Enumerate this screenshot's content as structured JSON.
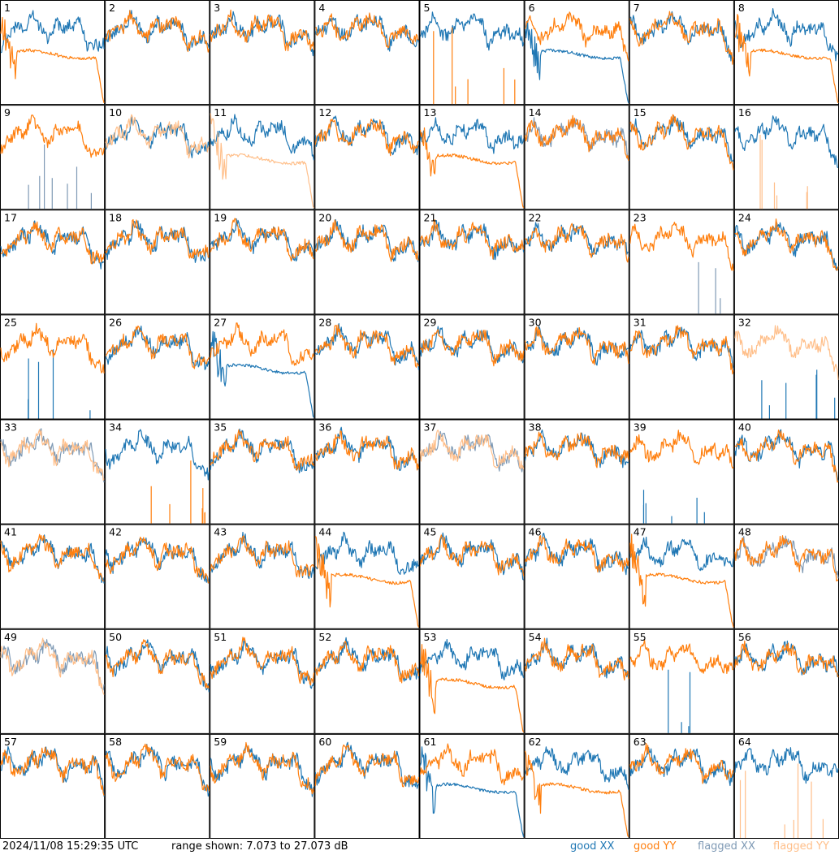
{
  "timestamp": "2024/11/08 15:29:35 UTC",
  "range_text": "range shown: 7.073 to 27.073 dB",
  "legend": [
    {
      "label": "good XX",
      "color": "#1f77b4"
    },
    {
      "label": "good YY",
      "color": "#ff7f0e"
    },
    {
      "label": "flagged XX",
      "color": "#7f9ab5"
    },
    {
      "label": "flagged YY",
      "color": "#ffbf8a"
    }
  ],
  "chart_data": {
    "type": "line",
    "grid": "8x8",
    "ylim": [
      7.073,
      27.073
    ],
    "yunit": "dB",
    "panels": [
      {
        "id": "1",
        "xx": "good",
        "yy": "good",
        "xx_shape": "normal",
        "yy_shape": "rolloff"
      },
      {
        "id": "2",
        "xx": "good",
        "yy": "good",
        "xx_shape": "normal",
        "yy_shape": "normal"
      },
      {
        "id": "3",
        "xx": "good",
        "yy": "good",
        "xx_shape": "normal",
        "yy_shape": "normal"
      },
      {
        "id": "4",
        "xx": "good",
        "yy": "good",
        "xx_shape": "normal",
        "yy_shape": "normal"
      },
      {
        "id": "5",
        "xx": "good",
        "yy": "good",
        "xx_shape": "normal",
        "yy_shape": "spikes"
      },
      {
        "id": "6",
        "xx": "good",
        "yy": "good",
        "xx_shape": "rolloff",
        "yy_shape": "normal"
      },
      {
        "id": "7",
        "xx": "good",
        "yy": "good",
        "xx_shape": "normal",
        "yy_shape": "normal"
      },
      {
        "id": "8",
        "xx": "good",
        "yy": "good",
        "xx_shape": "normal",
        "yy_shape": "rolloff"
      },
      {
        "id": "9",
        "xx": "flagged",
        "yy": "good",
        "xx_shape": "spikes",
        "yy_shape": "normal"
      },
      {
        "id": "10",
        "xx": "good",
        "yy": "flagged",
        "xx_shape": "normal",
        "yy_shape": "normal"
      },
      {
        "id": "11",
        "xx": "good",
        "yy": "flagged",
        "xx_shape": "normal",
        "yy_shape": "rolloff"
      },
      {
        "id": "12",
        "xx": "good",
        "yy": "good",
        "xx_shape": "normal",
        "yy_shape": "normal"
      },
      {
        "id": "13",
        "xx": "good",
        "yy": "good",
        "xx_shape": "normal",
        "yy_shape": "rolloff"
      },
      {
        "id": "14",
        "xx": "flagged",
        "yy": "good",
        "xx_shape": "normal",
        "yy_shape": "normal"
      },
      {
        "id": "15",
        "xx": "good",
        "yy": "good",
        "xx_shape": "normal",
        "yy_shape": "normal"
      },
      {
        "id": "16",
        "xx": "good",
        "yy": "flagged",
        "xx_shape": "normal",
        "yy_shape": "spikes"
      },
      {
        "id": "17",
        "xx": "good",
        "yy": "good",
        "xx_shape": "normal",
        "yy_shape": "normal"
      },
      {
        "id": "18",
        "xx": "good",
        "yy": "good",
        "xx_shape": "normal",
        "yy_shape": "normal"
      },
      {
        "id": "19",
        "xx": "good",
        "yy": "good",
        "xx_shape": "normal",
        "yy_shape": "normal"
      },
      {
        "id": "20",
        "xx": "good",
        "yy": "good",
        "xx_shape": "normal",
        "yy_shape": "normal"
      },
      {
        "id": "21",
        "xx": "good",
        "yy": "good",
        "xx_shape": "normal",
        "yy_shape": "normal"
      },
      {
        "id": "22",
        "xx": "good",
        "yy": "good",
        "xx_shape": "normal",
        "yy_shape": "normal"
      },
      {
        "id": "23",
        "xx": "flagged",
        "yy": "good",
        "xx_shape": "spikes",
        "yy_shape": "normal"
      },
      {
        "id": "24",
        "xx": "good",
        "yy": "good",
        "xx_shape": "normal",
        "yy_shape": "normal"
      },
      {
        "id": "25",
        "xx": "good",
        "yy": "good",
        "xx_shape": "spikes",
        "yy_shape": "normal"
      },
      {
        "id": "26",
        "xx": "good",
        "yy": "good",
        "xx_shape": "normal",
        "yy_shape": "normal"
      },
      {
        "id": "27",
        "xx": "good",
        "yy": "good",
        "xx_shape": "rolloff",
        "yy_shape": "normal"
      },
      {
        "id": "28",
        "xx": "good",
        "yy": "good",
        "xx_shape": "normal",
        "yy_shape": "normal"
      },
      {
        "id": "29",
        "xx": "good",
        "yy": "good",
        "xx_shape": "normal",
        "yy_shape": "normal"
      },
      {
        "id": "30",
        "xx": "good",
        "yy": "good",
        "xx_shape": "normal",
        "yy_shape": "normal"
      },
      {
        "id": "31",
        "xx": "good",
        "yy": "good",
        "xx_shape": "normal",
        "yy_shape": "normal"
      },
      {
        "id": "32",
        "xx": "good",
        "yy": "flagged",
        "xx_shape": "spikes",
        "yy_shape": "normal"
      },
      {
        "id": "33",
        "xx": "flagged",
        "yy": "flagged",
        "xx_shape": "normal",
        "yy_shape": "normal"
      },
      {
        "id": "34",
        "xx": "good",
        "yy": "good",
        "xx_shape": "normal",
        "yy_shape": "spikes"
      },
      {
        "id": "35",
        "xx": "good",
        "yy": "good",
        "xx_shape": "normal",
        "yy_shape": "normal"
      },
      {
        "id": "36",
        "xx": "good",
        "yy": "good",
        "xx_shape": "normal",
        "yy_shape": "normal"
      },
      {
        "id": "37",
        "xx": "flagged",
        "yy": "flagged",
        "xx_shape": "normal",
        "yy_shape": "normal"
      },
      {
        "id": "38",
        "xx": "good",
        "yy": "good",
        "xx_shape": "normal",
        "yy_shape": "normal"
      },
      {
        "id": "39",
        "xx": "good",
        "yy": "good",
        "xx_shape": "spikes",
        "yy_shape": "normal"
      },
      {
        "id": "40",
        "xx": "good",
        "yy": "good",
        "xx_shape": "normal",
        "yy_shape": "normal"
      },
      {
        "id": "41",
        "xx": "good",
        "yy": "good",
        "xx_shape": "normal",
        "yy_shape": "normal"
      },
      {
        "id": "42",
        "xx": "good",
        "yy": "good",
        "xx_shape": "normal",
        "yy_shape": "normal"
      },
      {
        "id": "43",
        "xx": "good",
        "yy": "good",
        "xx_shape": "normal",
        "yy_shape": "normal"
      },
      {
        "id": "44",
        "xx": "good",
        "yy": "good",
        "xx_shape": "normal",
        "yy_shape": "rolloff"
      },
      {
        "id": "45",
        "xx": "good",
        "yy": "good",
        "xx_shape": "normal",
        "yy_shape": "normal"
      },
      {
        "id": "46",
        "xx": "good",
        "yy": "good",
        "xx_shape": "normal",
        "yy_shape": "normal"
      },
      {
        "id": "47",
        "xx": "good",
        "yy": "good",
        "xx_shape": "normal",
        "yy_shape": "rolloff"
      },
      {
        "id": "48",
        "xx": "flagged",
        "yy": "good",
        "xx_shape": "normal",
        "yy_shape": "normal"
      },
      {
        "id": "49",
        "xx": "flagged",
        "yy": "flagged",
        "xx_shape": "normal",
        "yy_shape": "normal"
      },
      {
        "id": "50",
        "xx": "good",
        "yy": "good",
        "xx_shape": "normal",
        "yy_shape": "normal"
      },
      {
        "id": "51",
        "xx": "good",
        "yy": "good",
        "xx_shape": "normal",
        "yy_shape": "normal"
      },
      {
        "id": "52",
        "xx": "good",
        "yy": "good",
        "xx_shape": "normal",
        "yy_shape": "normal"
      },
      {
        "id": "53",
        "xx": "good",
        "yy": "good",
        "xx_shape": "normal",
        "yy_shape": "rolloff"
      },
      {
        "id": "54",
        "xx": "good",
        "yy": "good",
        "xx_shape": "normal",
        "yy_shape": "normal"
      },
      {
        "id": "55",
        "xx": "good",
        "yy": "good",
        "xx_shape": "spikes",
        "yy_shape": "normal"
      },
      {
        "id": "56",
        "xx": "good",
        "yy": "good",
        "xx_shape": "normal",
        "yy_shape": "normal"
      },
      {
        "id": "57",
        "xx": "good",
        "yy": "good",
        "xx_shape": "normal",
        "yy_shape": "normal"
      },
      {
        "id": "58",
        "xx": "good",
        "yy": "good",
        "xx_shape": "normal",
        "yy_shape": "normal"
      },
      {
        "id": "59",
        "xx": "good",
        "yy": "good",
        "xx_shape": "normal",
        "yy_shape": "normal"
      },
      {
        "id": "60",
        "xx": "good",
        "yy": "good",
        "xx_shape": "normal",
        "yy_shape": "normal"
      },
      {
        "id": "61",
        "xx": "good",
        "yy": "good",
        "xx_shape": "rolloff",
        "yy_shape": "normal"
      },
      {
        "id": "62",
        "xx": "good",
        "yy": "good",
        "xx_shape": "normal",
        "yy_shape": "rolloff"
      },
      {
        "id": "63",
        "xx": "good",
        "yy": "good",
        "xx_shape": "normal",
        "yy_shape": "normal"
      },
      {
        "id": "64",
        "xx": "good",
        "yy": "flagged",
        "xx_shape": "normal",
        "yy_shape": "spikes"
      }
    ]
  }
}
